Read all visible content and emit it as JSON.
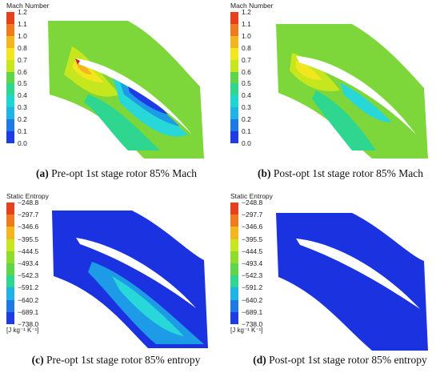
{
  "panels": [
    {
      "id": "a",
      "legend_title": "Mach Number",
      "ticks": [
        "1.2",
        "1.1",
        "1.0",
        "0.8",
        "0.7",
        "0.6",
        "0.5",
        "0.4",
        "0.3",
        "0.2",
        "0.1",
        "0.0"
      ],
      "unit": "",
      "caption_letter": "(a)",
      "caption_text": " Pre-opt 1st stage rotor 85% Mach"
    },
    {
      "id": "b",
      "legend_title": "Mach Number",
      "ticks": [
        "1.2",
        "1.1",
        "1.0",
        "0.8",
        "0.7",
        "0.6",
        "0.5",
        "0.4",
        "0.3",
        "0.2",
        "0.1",
        "0.0"
      ],
      "unit": "",
      "caption_letter": "(b)",
      "caption_text": " Post-opt 1st stage rotor 85% Mach"
    },
    {
      "id": "c",
      "legend_title": "Static Entropy",
      "ticks": [
        "−248.8",
        "−297.7",
        "−346.6",
        "−395.5",
        "−444.5",
        "−493.4",
        "−542.3",
        "−591.2",
        "−640.2",
        "−689.1",
        "−738.0"
      ],
      "unit": "[J kg⁻¹ K⁻¹]",
      "caption_letter": "(c)",
      "caption_text": " Pre-opt 1st stage rotor 85% entropy"
    },
    {
      "id": "d",
      "legend_title": "Static Entropy",
      "ticks": [
        "−248.8",
        "−297.7",
        "−346.6",
        "−395.5",
        "−444.5",
        "−493.4",
        "−542.3",
        "−591.2",
        "−640.2",
        "−689.1",
        "−738.0"
      ],
      "unit": "[J kg⁻¹ K⁻¹]",
      "caption_letter": "(d)",
      "caption_text": " Post-opt 1st stage rotor 85% entropy"
    }
  ],
  "colors": {
    "scale": [
      "#e8401a",
      "#f07a1e",
      "#f5b51e",
      "#f2e61e",
      "#c6e61e",
      "#8fdc2a",
      "#5fd64a",
      "#2fd68f",
      "#1ed6cf",
      "#1eb5e6",
      "#1e78e6",
      "#1e3ce6"
    ],
    "blue": "#1a32e0",
    "green": "#7dd63a",
    "cyan": "#28d8d8",
    "lightblue": "#1e9be6"
  }
}
